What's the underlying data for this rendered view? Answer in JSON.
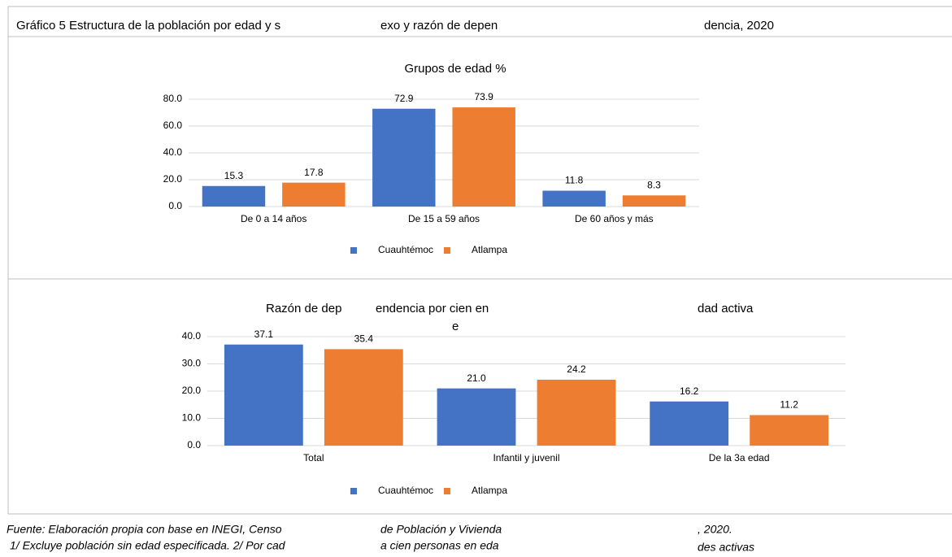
{
  "header": {
    "title_parts": [
      "Gráfico 5 Estructura de la población por edad y s",
      "exo y razón de depen",
      "dencia, 2020"
    ]
  },
  "chart_data": [
    {
      "type": "bar",
      "title": "Grupos de edad %",
      "categories": [
        "De 0 a 14 años",
        "De 15 a 59 años",
        "De 60 años y más"
      ],
      "series": [
        {
          "name": "Cuauhtémoc",
          "color": "#4472c4",
          "values": [
            15.3,
            72.9,
            11.8
          ]
        },
        {
          "name": "Atlampa",
          "color": "#ed7d31",
          "values": [
            17.8,
            73.9,
            8.3
          ]
        }
      ],
      "ylim": [
        0,
        80
      ],
      "yticks": [
        {
          "value": 0,
          "label": "0.0"
        },
        {
          "value": 20,
          "label": "20.0"
        },
        {
          "value": 40,
          "label": "40.0"
        },
        {
          "value": 60,
          "label": "60.0"
        },
        {
          "value": 80,
          "label": "80.0"
        }
      ],
      "grid": true,
      "legend": "bottom"
    },
    {
      "type": "bar",
      "title_parts": [
        "Razón de dep",
        "endencia por cien en",
        "e",
        "dad activa"
      ],
      "categories": [
        "Total",
        "Infantil y juvenil",
        "De la 3a edad"
      ],
      "series": [
        {
          "name": "Cuauhtémoc",
          "color": "#4472c4",
          "values": [
            37.1,
            21.0,
            16.2
          ],
          "value_labels": [
            "37.1",
            "21.0",
            "16.2"
          ]
        },
        {
          "name": "Atlampa",
          "color": "#ed7d31",
          "values": [
            35.4,
            24.2,
            11.2
          ]
        }
      ],
      "ylim": [
        0,
        40
      ],
      "yticks": [
        {
          "value": 0,
          "label": "0.0"
        },
        {
          "value": 10,
          "label": "10.0"
        },
        {
          "value": 20,
          "label": "20.0"
        },
        {
          "value": 30,
          "label": "30.0"
        },
        {
          "value": 40,
          "label": "40.0"
        }
      ],
      "grid": true,
      "legend": "bottom"
    }
  ],
  "footer": [
    [
      "Fuente: Elaboración propia con base en INEGI, Censo",
      "de Población y Vivienda",
      ", 2020."
    ],
    [
      "1/ Excluye población sin edad especificada. 2/ Por cad",
      "a cien personas en eda",
      "des activas"
    ]
  ]
}
